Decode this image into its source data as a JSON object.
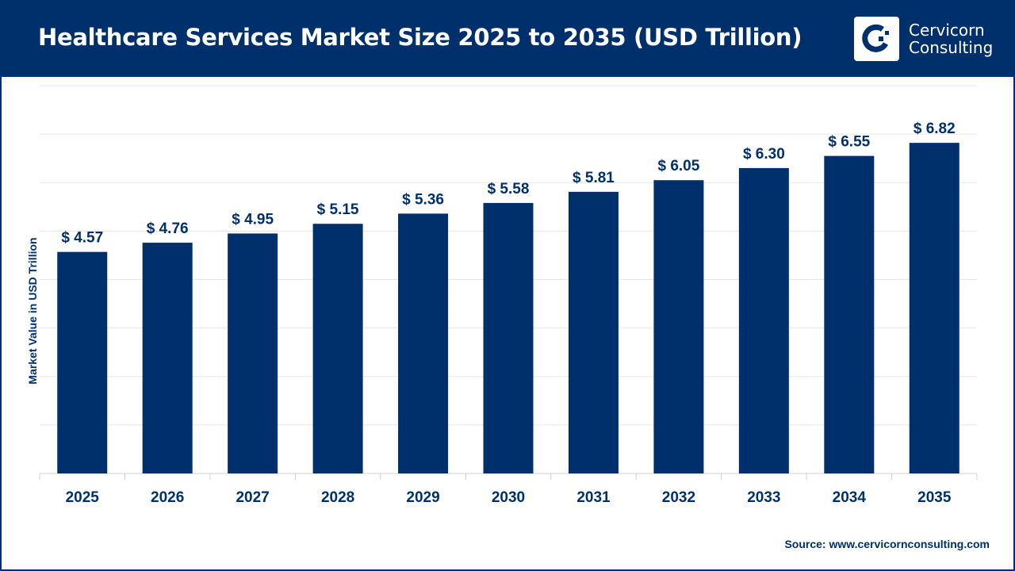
{
  "header": {
    "title": "Healthcare Services Market Size 2025 to 2035 (USD Trillion)"
  },
  "logo": {
    "line1": "Cervicorn",
    "line2": "Consulting"
  },
  "source": "Source: www.cervicornconsulting.com",
  "colors": {
    "bar": "#00306b",
    "header": "#00306b",
    "grid": "#e6e6e6"
  },
  "chart_data": {
    "type": "bar",
    "title": "Healthcare Services Market Size 2025 to 2035 (USD Trillion)",
    "xlabel": "",
    "ylabel": "Market Value in USD Trillion",
    "ylim": [
      0,
      8
    ],
    "grid": true,
    "categories": [
      "2025",
      "2026",
      "2027",
      "2028",
      "2029",
      "2030",
      "2031",
      "2032",
      "2033",
      "2034",
      "2035"
    ],
    "values": [
      4.57,
      4.76,
      4.95,
      5.15,
      5.36,
      5.58,
      5.81,
      6.05,
      6.3,
      6.55,
      6.82
    ],
    "data_labels": [
      "$ 4.57",
      "$ 4.76",
      "$ 4.95",
      "$ 5.15",
      "$ 5.36",
      "$ 5.58",
      "$ 5.81",
      "$ 6.05",
      "$ 6.30",
      "$ 6.55",
      "$ 6.82"
    ]
  }
}
